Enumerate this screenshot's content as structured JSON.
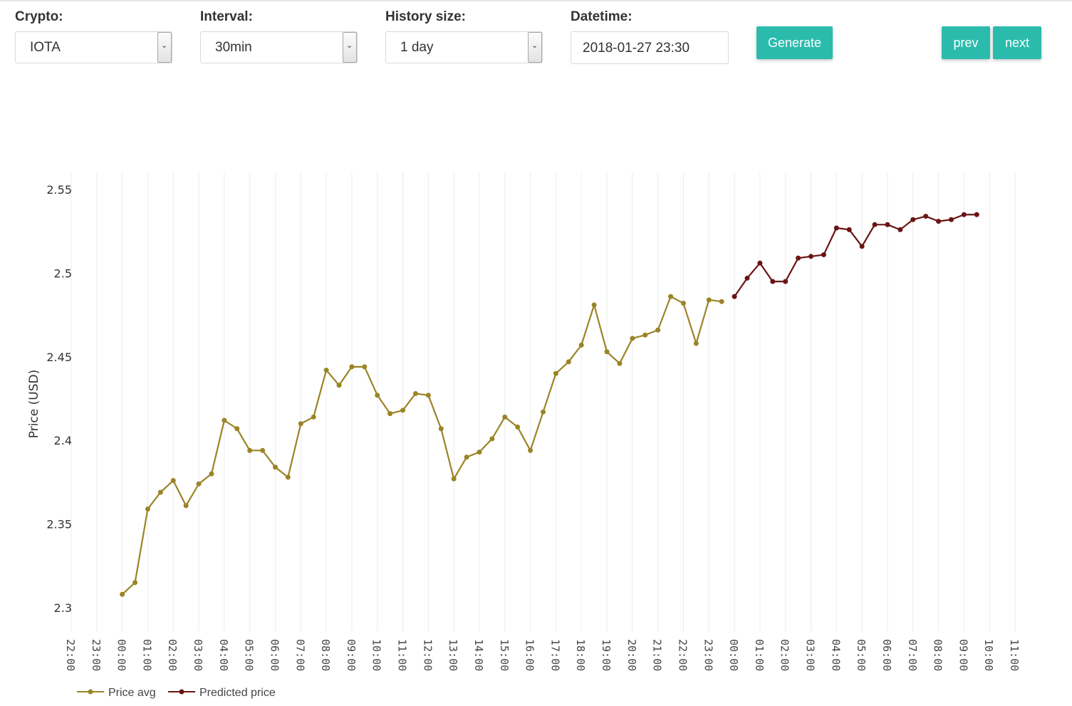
{
  "controls": {
    "crypto": {
      "label": "Crypto:",
      "value": "IOTA"
    },
    "interval": {
      "label": "Interval:",
      "value": "30min"
    },
    "history": {
      "label": "History size:",
      "value": "1 day"
    },
    "datetime": {
      "label": "Datetime:",
      "value": "2018-01-27 23:30"
    },
    "generate_label": "Generate",
    "prev_label": "prev",
    "next_label": "next"
  },
  "colors": {
    "accent": "#2bbbad",
    "price_avg": "#9b8426",
    "predicted": "#6b1414"
  },
  "chart_data": {
    "type": "line",
    "ylabel": "Price (USD)",
    "xlabel": "",
    "ylim": [
      2.29,
      2.565
    ],
    "y_ticks": [
      "2.3",
      "2.35",
      "2.4",
      "2.45",
      "2.5",
      "2.55"
    ],
    "x_ticks": [
      "22:00",
      "23:00",
      "00:00",
      "01:00",
      "02:00",
      "03:00",
      "04:00",
      "05:00",
      "06:00",
      "07:00",
      "08:00",
      "09:00",
      "10:00",
      "11:00",
      "12:00",
      "13:00",
      "14:00",
      "15:00",
      "16:00",
      "17:00",
      "18:00",
      "19:00",
      "20:00",
      "21:00",
      "22:00",
      "23:00",
      "00:00",
      "01:00",
      "02:00",
      "03:00",
      "04:00",
      "05:00",
      "06:00",
      "07:00",
      "08:00",
      "09:00",
      "10:00",
      "11:00"
    ],
    "x_range_hours": [
      -2,
      35
    ],
    "grid": true,
    "legend_position": "bottom-left",
    "series": [
      {
        "name": "Price avg",
        "color": "#9b8426",
        "x": [
          "2018-01-27 00:00",
          "2018-01-27 00:30",
          "2018-01-27 01:00",
          "2018-01-27 01:30",
          "2018-01-27 02:00",
          "2018-01-27 02:30",
          "2018-01-27 03:00",
          "2018-01-27 03:30",
          "2018-01-27 04:00",
          "2018-01-27 04:30",
          "2018-01-27 05:00",
          "2018-01-27 05:30",
          "2018-01-27 06:00",
          "2018-01-27 06:30",
          "2018-01-27 07:00",
          "2018-01-27 07:30",
          "2018-01-27 08:00",
          "2018-01-27 08:30",
          "2018-01-27 09:00",
          "2018-01-27 09:30",
          "2018-01-27 10:00",
          "2018-01-27 10:30",
          "2018-01-27 11:00",
          "2018-01-27 11:30",
          "2018-01-27 12:00",
          "2018-01-27 12:30",
          "2018-01-27 13:00",
          "2018-01-27 13:30",
          "2018-01-27 14:00",
          "2018-01-27 14:30",
          "2018-01-27 15:00",
          "2018-01-27 15:30",
          "2018-01-27 16:00",
          "2018-01-27 16:30",
          "2018-01-27 17:00",
          "2018-01-27 17:30",
          "2018-01-27 18:00",
          "2018-01-27 18:30",
          "2018-01-27 19:00",
          "2018-01-27 19:30",
          "2018-01-27 20:00",
          "2018-01-27 20:30",
          "2018-01-27 21:00",
          "2018-01-27 21:30",
          "2018-01-27 22:00",
          "2018-01-27 22:30",
          "2018-01-27 23:00",
          "2018-01-27 23:30"
        ],
        "values": [
          2.308,
          2.315,
          2.359,
          2.369,
          2.376,
          2.361,
          2.374,
          2.38,
          2.412,
          2.407,
          2.394,
          2.394,
          2.384,
          2.378,
          2.41,
          2.414,
          2.442,
          2.433,
          2.444,
          2.444,
          2.427,
          2.416,
          2.418,
          2.428,
          2.427,
          2.407,
          2.377,
          2.39,
          2.393,
          2.401,
          2.414,
          2.408,
          2.394,
          2.417,
          2.44,
          2.447,
          2.457,
          2.481,
          2.453,
          2.446,
          2.461,
          2.463,
          2.466,
          2.486,
          2.482,
          2.458,
          2.484,
          2.483
        ]
      },
      {
        "name": "Predicted price",
        "color": "#6b1414",
        "x": [
          "2018-01-28 00:00",
          "2018-01-28 00:30",
          "2018-01-28 01:00",
          "2018-01-28 01:30",
          "2018-01-28 02:00",
          "2018-01-28 02:30",
          "2018-01-28 03:00",
          "2018-01-28 03:30",
          "2018-01-28 04:00",
          "2018-01-28 04:30",
          "2018-01-28 05:00",
          "2018-01-28 05:30",
          "2018-01-28 06:00",
          "2018-01-28 06:30",
          "2018-01-28 07:00",
          "2018-01-28 07:30",
          "2018-01-28 08:00",
          "2018-01-28 08:30",
          "2018-01-28 09:00",
          "2018-01-28 09:30"
        ],
        "values": [
          2.486,
          2.497,
          2.506,
          2.495,
          2.495,
          2.509,
          2.51,
          2.511,
          2.527,
          2.526,
          2.516,
          2.529,
          2.529,
          2.526,
          2.532,
          2.534,
          2.531,
          2.532,
          2.535,
          2.535
        ]
      }
    ]
  }
}
